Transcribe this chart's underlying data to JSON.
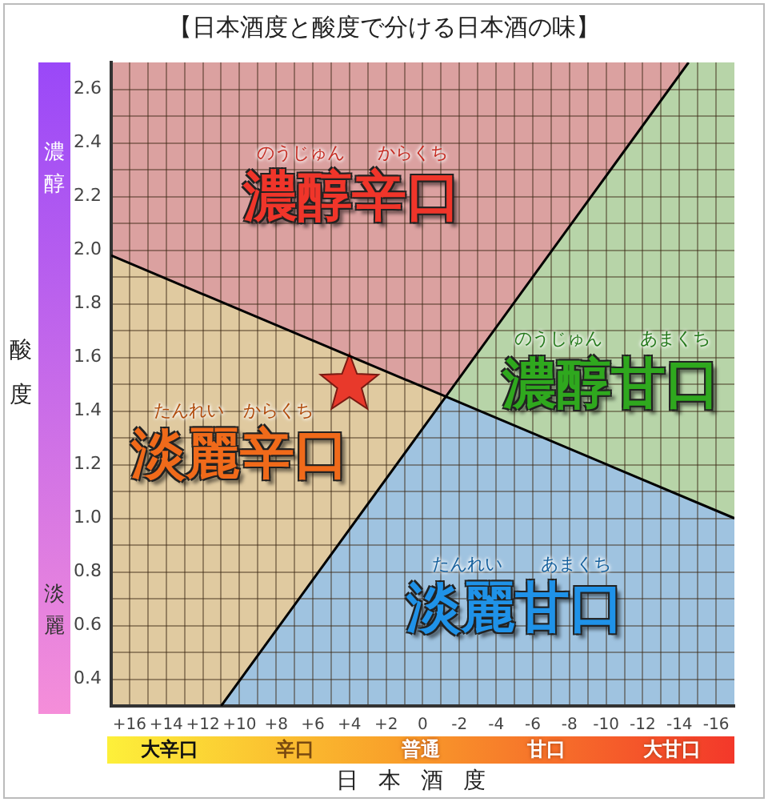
{
  "chart_data": {
    "type": "scatter",
    "title": "【日本酒度と酸度で分ける日本酒の味】",
    "xlabel": "日本酒度",
    "ylabel": "酸度",
    "xlim": [
      17,
      -17
    ],
    "ylim": [
      0.3,
      2.7
    ],
    "xticks": [
      {
        "value": 16,
        "label": "+16"
      },
      {
        "value": 15,
        "label": null
      },
      {
        "value": 14,
        "label": "+14"
      },
      {
        "value": 13,
        "label": null
      },
      {
        "value": 12,
        "label": "+12"
      },
      {
        "value": 11,
        "label": null
      },
      {
        "value": 10,
        "label": "+10"
      },
      {
        "value": 9,
        "label": null
      },
      {
        "value": 8,
        "label": "+8"
      },
      {
        "value": 7,
        "label": null
      },
      {
        "value": 6,
        "label": "+6"
      },
      {
        "value": 5,
        "label": null
      },
      {
        "value": 4,
        "label": "+4"
      },
      {
        "value": 3,
        "label": null
      },
      {
        "value": 2,
        "label": "+2"
      },
      {
        "value": 1,
        "label": null
      },
      0,
      {
        "value": -1,
        "label": null
      },
      -2,
      {
        "value": -3,
        "label": null
      },
      -4,
      {
        "value": -5,
        "label": null
      },
      -6,
      {
        "value": -7,
        "label": null
      },
      -8,
      {
        "value": -9,
        "label": null
      },
      -10,
      {
        "value": -11,
        "label": null
      },
      -12,
      {
        "value": -13,
        "label": null
      },
      -14,
      {
        "value": -15,
        "label": null
      },
      -16
    ],
    "yticks": [
      0.4,
      {
        "value": 0.5,
        "label": null
      },
      0.6,
      {
        "value": 0.7,
        "label": null
      },
      0.8,
      {
        "value": 0.9,
        "label": null
      },
      {
        "value": 1,
        "label": "1.0"
      },
      {
        "value": 1.1,
        "label": null
      },
      1.2,
      {
        "value": 1.3,
        "label": null
      },
      1.4,
      {
        "value": 1.5,
        "label": null
      },
      1.6,
      {
        "value": 1.7,
        "label": null
      },
      1.8,
      {
        "value": 1.9,
        "label": null
      },
      {
        "value": 2,
        "label": "2.0"
      },
      {
        "value": 2.1,
        "label": null
      },
      2.2,
      {
        "value": 2.3,
        "label": null
      },
      2.4,
      {
        "value": 2.5,
        "label": null
      },
      2.6
    ],
    "grid": true,
    "series": [
      {
        "type": "line",
        "color": "#000000",
        "x": [
          17,
          -17
        ],
        "values": [
          1.98,
          1.0
        ]
      },
      {
        "type": "line",
        "color": "#000000",
        "x": [
          11,
          -14.5
        ],
        "values": [
          0.3,
          2.7
        ]
      },
      {
        "marker": "star",
        "color": "#e8392b",
        "x": [
          4
        ],
        "values": [
          1.5
        ]
      }
    ],
    "annotations": [
      "濃醇",
      "淡麗",
      "大辛口",
      "辛口",
      "普通",
      "甘口",
      "大甘口",
      "濃醇辛口",
      "のうじゅん",
      "からくち",
      "濃醇甘口",
      "のうじゅん",
      "あまくち",
      "淡麗辛口",
      "たんれい",
      "からくち",
      "淡麗甘口",
      "たんれい",
      "あまくち"
    ]
  }
}
